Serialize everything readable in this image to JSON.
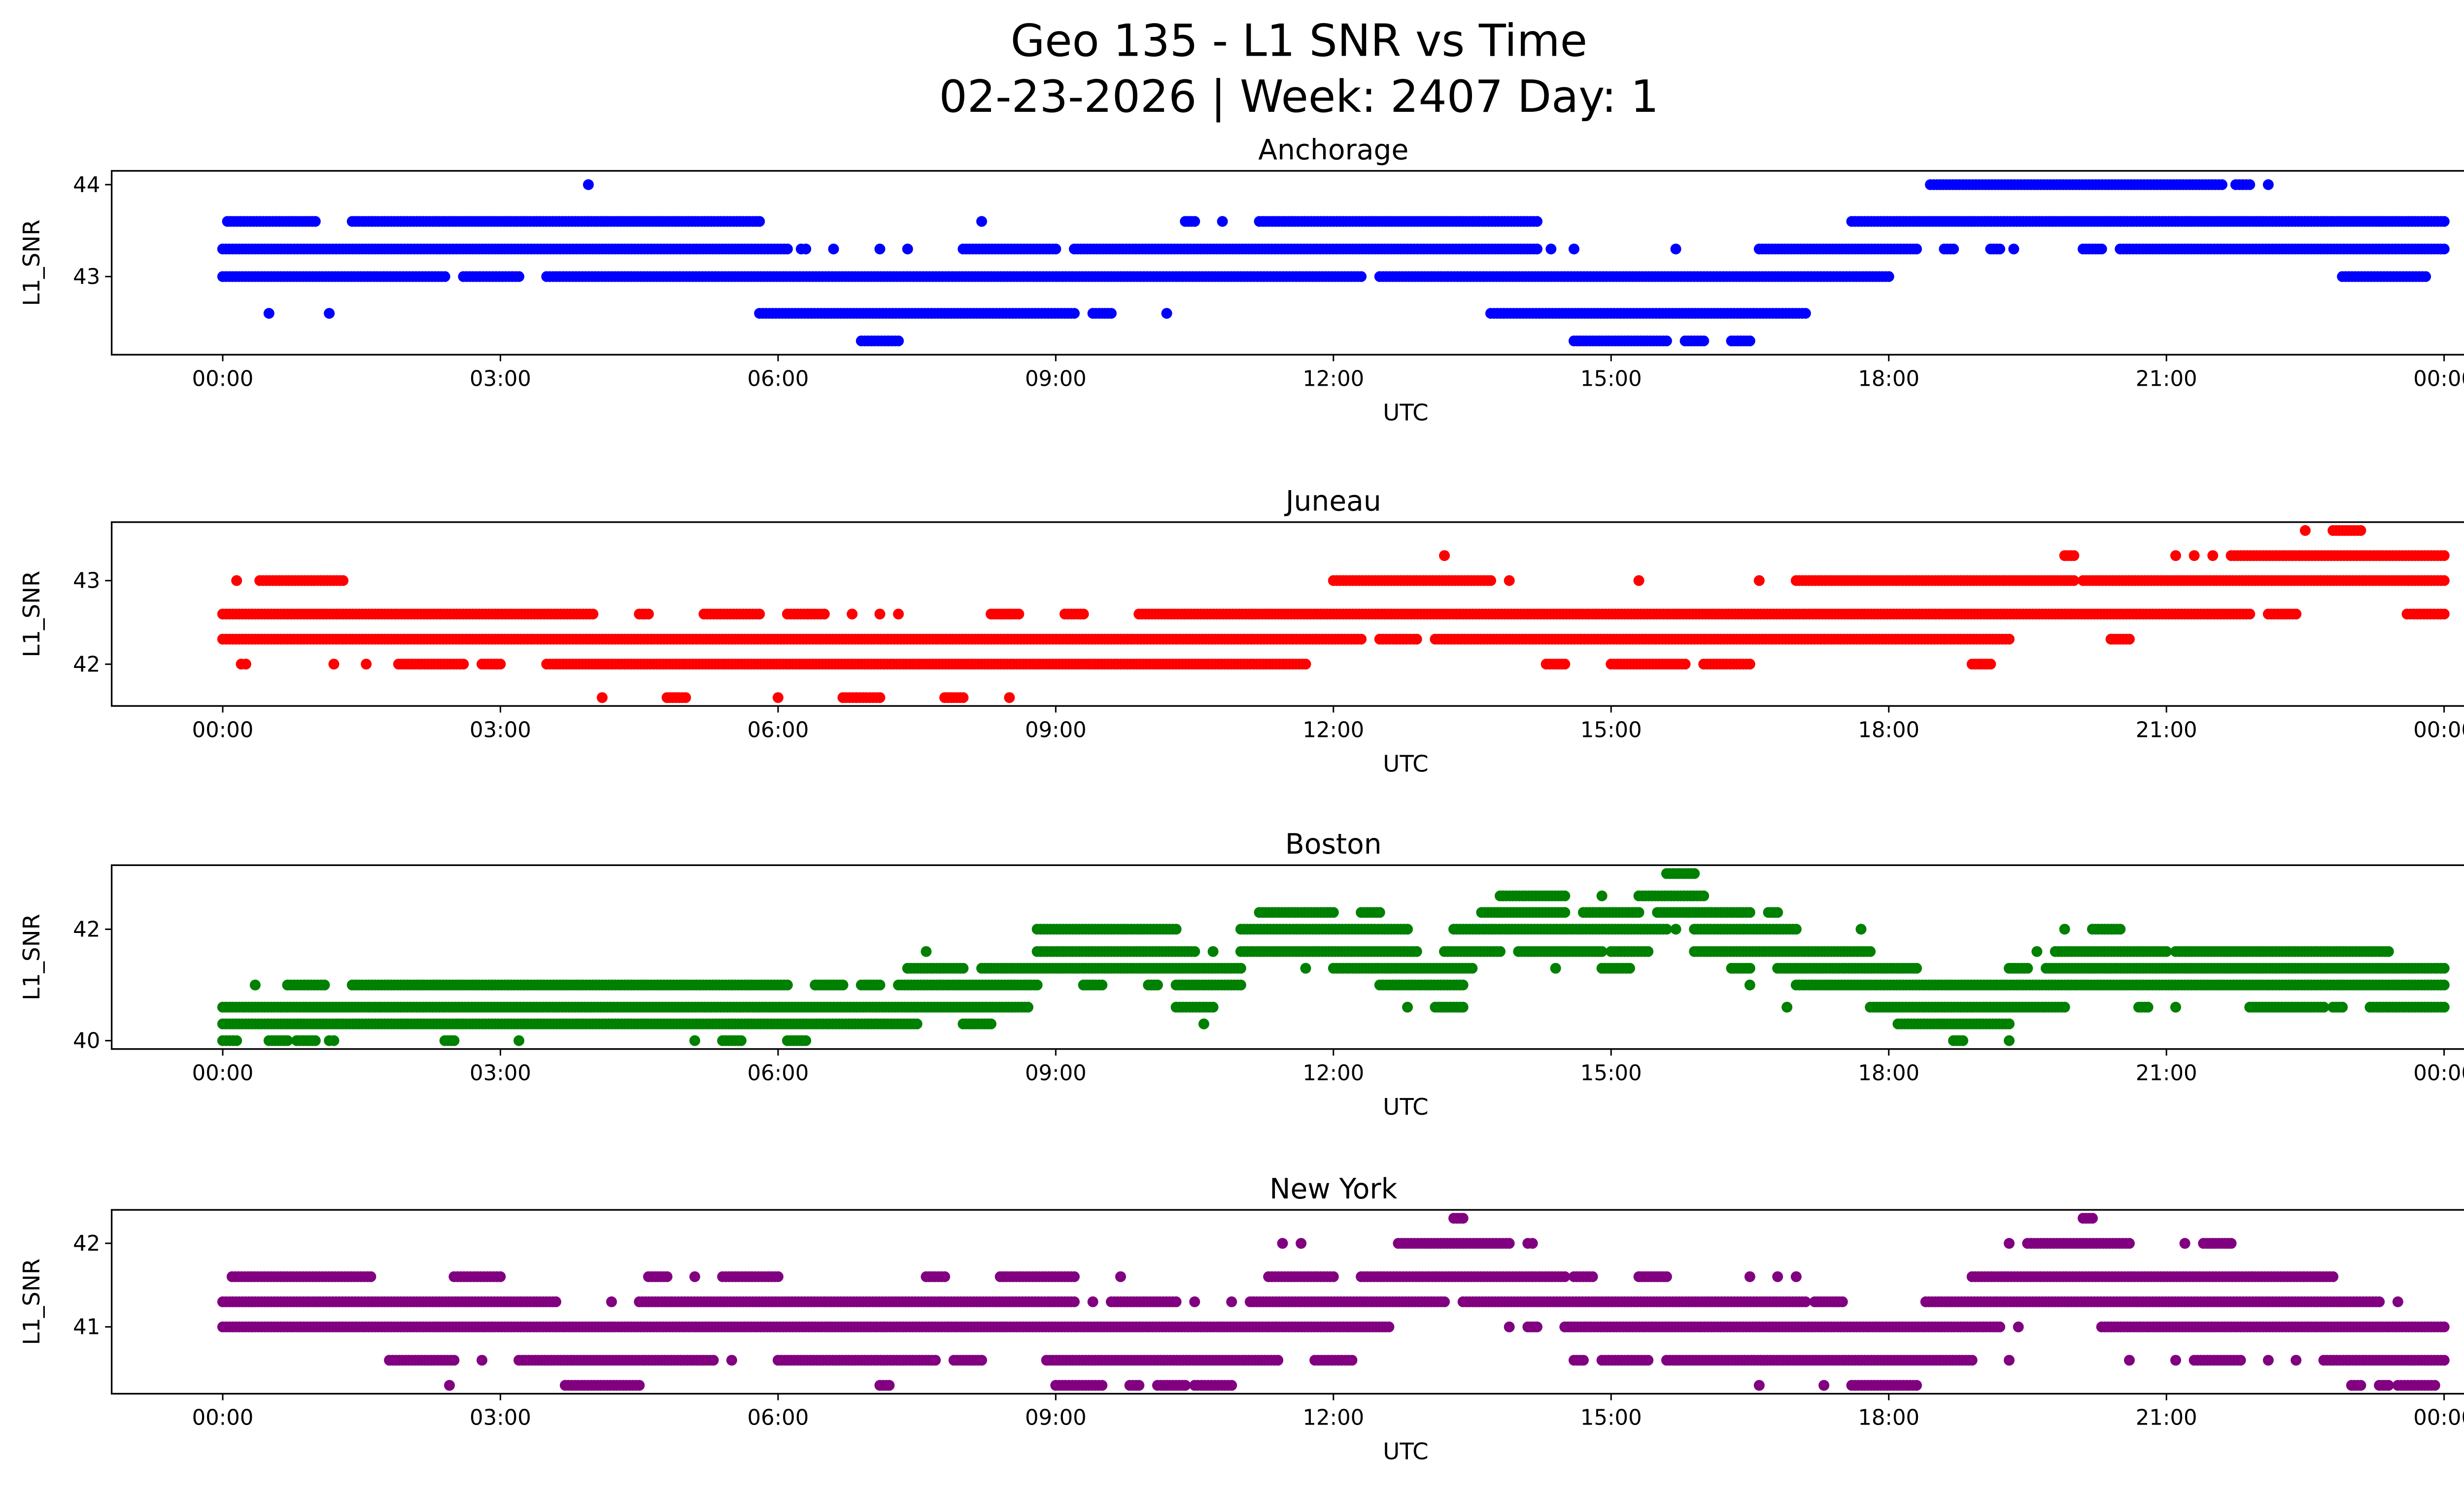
{
  "title_line1": "Geo 135 - L1 SNR vs Time",
  "title_line2": "02-23-2026 | Week: 2407 Day: 1",
  "chart_data": [
    {
      "type": "scatter",
      "title": "Anchorage",
      "xlabel": "UTC",
      "ylabel": "L1_SNR",
      "color": "#0000ff",
      "xlim_hours": [
        -1.2,
        25.2
      ],
      "xticks_hours": [
        0,
        3,
        6,
        9,
        12,
        15,
        18,
        21,
        24
      ],
      "xtick_labels": [
        "00:00",
        "03:00",
        "06:00",
        "09:00",
        "12:00",
        "15:00",
        "18:00",
        "21:00",
        "00:00"
      ],
      "ylim": [
        42.15,
        44.15
      ],
      "yticks": [
        43,
        44
      ],
      "ytick_labels": [
        "43",
        "44"
      ],
      "segments_hour_start_end_snr": [
        [
          3.95,
          3.95,
          44
        ],
        [
          18.45,
          21.6,
          44
        ],
        [
          21.75,
          21.9,
          44
        ],
        [
          22.1,
          22.1,
          44
        ],
        [
          0.05,
          1.0,
          43.6
        ],
        [
          1.4,
          5.8,
          43.6
        ],
        [
          8.2,
          8.2,
          43.6
        ],
        [
          10.4,
          10.5,
          43.6
        ],
        [
          10.8,
          10.8,
          43.6
        ],
        [
          11.2,
          14.2,
          43.6
        ],
        [
          17.6,
          24,
          43.6
        ],
        [
          0,
          6.1,
          43.3
        ],
        [
          6.25,
          6.3,
          43.3
        ],
        [
          6.6,
          6.6,
          43.3
        ],
        [
          7.1,
          7.1,
          43.3
        ],
        [
          7.4,
          7.4,
          43.3
        ],
        [
          8.0,
          9.0,
          43.3
        ],
        [
          9.2,
          14.2,
          43.3
        ],
        [
          14.35,
          14.35,
          43.3
        ],
        [
          14.6,
          14.6,
          43.3
        ],
        [
          15.7,
          15.7,
          43.3
        ],
        [
          16.6,
          18.3,
          43.3
        ],
        [
          18.6,
          18.7,
          43.3
        ],
        [
          19.1,
          19.2,
          43.3
        ],
        [
          19.35,
          19.35,
          43.3
        ],
        [
          20.1,
          20.3,
          43.3
        ],
        [
          20.5,
          24,
          43.3
        ],
        [
          0,
          2.4,
          43
        ],
        [
          2.6,
          3.2,
          43
        ],
        [
          3.5,
          12.3,
          43
        ],
        [
          12.5,
          18.0,
          43
        ],
        [
          22.9,
          23.8,
          43
        ],
        [
          0.5,
          0.5,
          42.6
        ],
        [
          1.15,
          1.15,
          42.6
        ],
        [
          5.8,
          9.2,
          42.6
        ],
        [
          9.4,
          9.6,
          42.6
        ],
        [
          10.2,
          10.2,
          42.6
        ],
        [
          13.7,
          17.1,
          42.6
        ],
        [
          6.9,
          7.3,
          42.3
        ],
        [
          14.6,
          15.6,
          42.3
        ],
        [
          15.8,
          16.0,
          42.3
        ],
        [
          16.3,
          16.5,
          42.3
        ]
      ]
    },
    {
      "type": "scatter",
      "title": "Juneau",
      "xlabel": "UTC",
      "ylabel": "L1_SNR",
      "color": "#ff0000",
      "xlim_hours": [
        -1.2,
        25.2
      ],
      "xticks_hours": [
        0,
        3,
        6,
        9,
        12,
        15,
        18,
        21,
        24
      ],
      "xtick_labels": [
        "00:00",
        "03:00",
        "06:00",
        "09:00",
        "12:00",
        "15:00",
        "18:00",
        "21:00",
        "00:00"
      ],
      "ylim": [
        41.5,
        43.7
      ],
      "yticks": [
        42,
        43
      ],
      "ytick_labels": [
        "42",
        "43"
      ],
      "segments_hour_start_end_snr": [
        [
          22.5,
          22.5,
          43.6
        ],
        [
          22.8,
          23.1,
          43.6
        ],
        [
          13.2,
          13.2,
          43.3
        ],
        [
          19.9,
          20.0,
          43.3
        ],
        [
          21.1,
          21.1,
          43.3
        ],
        [
          21.3,
          21.3,
          43.3
        ],
        [
          21.5,
          21.5,
          43.3
        ],
        [
          21.7,
          24,
          43.3
        ],
        [
          0.15,
          0.15,
          43
        ],
        [
          0.4,
          1.3,
          43
        ],
        [
          12.0,
          13.7,
          43
        ],
        [
          13.9,
          13.9,
          43
        ],
        [
          15.3,
          15.3,
          43
        ],
        [
          16.6,
          16.6,
          43
        ],
        [
          17.0,
          20.0,
          43
        ],
        [
          20.1,
          24,
          43
        ],
        [
          0,
          4.0,
          42.6
        ],
        [
          4.5,
          4.6,
          42.6
        ],
        [
          5.2,
          5.8,
          42.6
        ],
        [
          6.1,
          6.5,
          42.6
        ],
        [
          6.8,
          6.8,
          42.6
        ],
        [
          7.1,
          7.1,
          42.6
        ],
        [
          7.3,
          7.3,
          42.6
        ],
        [
          8.3,
          8.6,
          42.6
        ],
        [
          9.1,
          9.3,
          42.6
        ],
        [
          9.9,
          21.9,
          42.6
        ],
        [
          22.1,
          22.4,
          42.6
        ],
        [
          23.6,
          24,
          42.6
        ],
        [
          0,
          12.3,
          42.3
        ],
        [
          12.5,
          12.9,
          42.3
        ],
        [
          13.1,
          19.3,
          42.3
        ],
        [
          20.4,
          20.6,
          42.3
        ],
        [
          0.2,
          0.25,
          42
        ],
        [
          1.2,
          1.2,
          42
        ],
        [
          1.55,
          1.55,
          42
        ],
        [
          1.9,
          2.6,
          42
        ],
        [
          2.8,
          3.0,
          42
        ],
        [
          3.5,
          11.7,
          42
        ],
        [
          14.3,
          14.5,
          42
        ],
        [
          15.0,
          15.8,
          42
        ],
        [
          16.0,
          16.5,
          42
        ],
        [
          18.9,
          19.1,
          42
        ],
        [
          4.1,
          4.1,
          41.6
        ],
        [
          4.8,
          5.0,
          41.6
        ],
        [
          6.0,
          6.0,
          41.6
        ],
        [
          6.7,
          7.1,
          41.6
        ],
        [
          7.8,
          8.0,
          41.6
        ],
        [
          8.5,
          8.5,
          41.6
        ]
      ]
    },
    {
      "type": "scatter",
      "title": "Boston",
      "xlabel": "UTC",
      "ylabel": "L1_SNR",
      "color": "#008000",
      "xlim_hours": [
        -1.2,
        25.2
      ],
      "xticks_hours": [
        0,
        3,
        6,
        9,
        12,
        15,
        18,
        21,
        24
      ],
      "xtick_labels": [
        "00:00",
        "03:00",
        "06:00",
        "09:00",
        "12:00",
        "15:00",
        "18:00",
        "21:00",
        "00:00"
      ],
      "ylim": [
        39.85,
        43.15
      ],
      "yticks": [
        40,
        42
      ],
      "ytick_labels": [
        "40",
        "42"
      ],
      "segments_hour_start_end_snr": [
        [
          15.6,
          15.9,
          43
        ],
        [
          13.8,
          14.5,
          42.6
        ],
        [
          14.9,
          14.9,
          42.6
        ],
        [
          15.3,
          16.0,
          42.6
        ],
        [
          11.2,
          12.0,
          42.3
        ],
        [
          12.3,
          12.5,
          42.3
        ],
        [
          13.6,
          14.5,
          42.3
        ],
        [
          14.7,
          15.3,
          42.3
        ],
        [
          15.5,
          16.5,
          42.3
        ],
        [
          16.7,
          16.8,
          42.3
        ],
        [
          8.8,
          10.3,
          42
        ],
        [
          11.0,
          12.8,
          42
        ],
        [
          13.3,
          15.6,
          42
        ],
        [
          15.7,
          15.7,
          42
        ],
        [
          15.9,
          17.0,
          42
        ],
        [
          17.7,
          17.7,
          42
        ],
        [
          19.9,
          19.9,
          42
        ],
        [
          20.2,
          20.5,
          42
        ],
        [
          7.6,
          7.6,
          41.6
        ],
        [
          8.8,
          10.5,
          41.6
        ],
        [
          10.7,
          10.7,
          41.6
        ],
        [
          11.0,
          12.9,
          41.6
        ],
        [
          13.2,
          13.8,
          41.6
        ],
        [
          14.0,
          14.9,
          41.6
        ],
        [
          15.0,
          15.4,
          41.6
        ],
        [
          15.9,
          17.8,
          41.6
        ],
        [
          19.6,
          19.6,
          41.6
        ],
        [
          19.8,
          21.0,
          41.6
        ],
        [
          21.1,
          23.4,
          41.6
        ],
        [
          7.4,
          8.0,
          41.3
        ],
        [
          8.2,
          11.0,
          41.3
        ],
        [
          11.7,
          11.7,
          41.3
        ],
        [
          12.0,
          13.5,
          41.3
        ],
        [
          14.4,
          14.4,
          41.3
        ],
        [
          14.9,
          15.2,
          41.3
        ],
        [
          16.3,
          16.5,
          41.3
        ],
        [
          16.8,
          18.3,
          41.3
        ],
        [
          19.3,
          19.5,
          41.3
        ],
        [
          19.7,
          24,
          41.3
        ],
        [
          0.35,
          0.35,
          41
        ],
        [
          0.7,
          1.1,
          41
        ],
        [
          1.4,
          6.1,
          41
        ],
        [
          6.4,
          6.7,
          41
        ],
        [
          6.9,
          7.1,
          41
        ],
        [
          7.3,
          8.8,
          41
        ],
        [
          9.3,
          9.5,
          41
        ],
        [
          10.0,
          10.1,
          41
        ],
        [
          10.3,
          11.0,
          41
        ],
        [
          12.5,
          13.4,
          41
        ],
        [
          16.5,
          16.5,
          41
        ],
        [
          17.0,
          24,
          41
        ],
        [
          0,
          8.7,
          40.6
        ],
        [
          10.3,
          10.7,
          40.6
        ],
        [
          12.8,
          12.8,
          40.6
        ],
        [
          13.1,
          13.4,
          40.6
        ],
        [
          16.9,
          16.9,
          40.6
        ],
        [
          17.8,
          19.9,
          40.6
        ],
        [
          20.7,
          20.8,
          40.6
        ],
        [
          21.1,
          21.1,
          40.6
        ],
        [
          21.9,
          22.7,
          40.6
        ],
        [
          22.8,
          22.9,
          40.6
        ],
        [
          23.2,
          24,
          40.6
        ],
        [
          0,
          7.5,
          40.3
        ],
        [
          8.0,
          8.3,
          40.3
        ],
        [
          10.6,
          10.6,
          40.3
        ],
        [
          18.1,
          19.3,
          40.3
        ],
        [
          0,
          0.15,
          40
        ],
        [
          0.5,
          0.7,
          40
        ],
        [
          0.8,
          1.0,
          40
        ],
        [
          1.15,
          1.2,
          40
        ],
        [
          2.4,
          2.5,
          40
        ],
        [
          3.2,
          3.2,
          40
        ],
        [
          5.1,
          5.1,
          40
        ],
        [
          5.4,
          5.6,
          40
        ],
        [
          6.1,
          6.3,
          40
        ],
        [
          18.7,
          18.8,
          40
        ],
        [
          19.3,
          19.3,
          40
        ]
      ]
    },
    {
      "type": "scatter",
      "title": "New York",
      "xlabel": "UTC",
      "ylabel": "L1_SNR",
      "color": "#800080",
      "xlim_hours": [
        -1.2,
        25.2
      ],
      "xticks_hours": [
        0,
        3,
        6,
        9,
        12,
        15,
        18,
        21,
        24
      ],
      "xtick_labels": [
        "00:00",
        "03:00",
        "06:00",
        "09:00",
        "12:00",
        "15:00",
        "18:00",
        "21:00",
        "00:00"
      ],
      "ylim": [
        40.2,
        42.4
      ],
      "yticks": [
        41,
        42
      ],
      "ytick_labels": [
        "41",
        "42"
      ],
      "segments_hour_start_end_snr": [
        [
          13.3,
          13.4,
          42.3
        ],
        [
          20.1,
          20.2,
          42.3
        ],
        [
          11.45,
          11.45,
          42
        ],
        [
          11.65,
          11.65,
          42
        ],
        [
          12.7,
          13.9,
          42
        ],
        [
          14.1,
          14.15,
          42
        ],
        [
          19.3,
          19.3,
          42
        ],
        [
          19.5,
          20.6,
          42
        ],
        [
          21.2,
          21.2,
          42
        ],
        [
          21.4,
          21.7,
          42
        ],
        [
          0.1,
          1.6,
          41.6
        ],
        [
          2.5,
          3.0,
          41.6
        ],
        [
          4.6,
          4.8,
          41.6
        ],
        [
          5.1,
          5.1,
          41.6
        ],
        [
          5.4,
          6.0,
          41.6
        ],
        [
          7.6,
          7.8,
          41.6
        ],
        [
          8.4,
          9.2,
          41.6
        ],
        [
          9.7,
          9.7,
          41.6
        ],
        [
          11.3,
          12.0,
          41.6
        ],
        [
          12.3,
          14.5,
          41.6
        ],
        [
          14.6,
          14.8,
          41.6
        ],
        [
          15.3,
          15.6,
          41.6
        ],
        [
          16.5,
          16.5,
          41.6
        ],
        [
          16.8,
          16.8,
          41.6
        ],
        [
          17.0,
          17.0,
          41.6
        ],
        [
          18.9,
          22.8,
          41.6
        ],
        [
          0,
          3.6,
          41.3
        ],
        [
          4.2,
          4.2,
          41.3
        ],
        [
          4.5,
          9.2,
          41.3
        ],
        [
          9.4,
          9.4,
          41.3
        ],
        [
          9.6,
          10.3,
          41.3
        ],
        [
          10.5,
          10.5,
          41.3
        ],
        [
          10.9,
          10.9,
          41.3
        ],
        [
          11.1,
          13.2,
          41.3
        ],
        [
          13.4,
          17.1,
          41.3
        ],
        [
          17.2,
          17.5,
          41.3
        ],
        [
          18.4,
          23.3,
          41.3
        ],
        [
          23.5,
          23.5,
          41.3
        ],
        [
          0,
          12.6,
          41
        ],
        [
          13.9,
          13.9,
          41
        ],
        [
          14.1,
          14.2,
          41
        ],
        [
          14.5,
          19.2,
          41
        ],
        [
          19.4,
          19.4,
          41
        ],
        [
          20.3,
          24,
          41
        ],
        [
          1.8,
          2.5,
          40.6
        ],
        [
          2.8,
          2.8,
          40.6
        ],
        [
          3.2,
          5.3,
          40.6
        ],
        [
          5.5,
          5.5,
          40.6
        ],
        [
          6.0,
          7.7,
          40.6
        ],
        [
          7.9,
          8.2,
          40.6
        ],
        [
          8.9,
          11.4,
          40.6
        ],
        [
          11.8,
          12.2,
          40.6
        ],
        [
          14.6,
          14.7,
          40.6
        ],
        [
          14.9,
          15.4,
          40.6
        ],
        [
          15.6,
          18.9,
          40.6
        ],
        [
          19.3,
          19.3,
          40.6
        ],
        [
          20.6,
          20.6,
          40.6
        ],
        [
          21.1,
          21.1,
          40.6
        ],
        [
          21.3,
          21.8,
          40.6
        ],
        [
          22.1,
          22.1,
          40.6
        ],
        [
          22.4,
          22.4,
          40.6
        ],
        [
          22.7,
          24,
          40.6
        ],
        [
          2.45,
          2.45,
          40.3
        ],
        [
          3.7,
          4.5,
          40.3
        ],
        [
          7.1,
          7.2,
          40.3
        ],
        [
          9.0,
          9.5,
          40.3
        ],
        [
          9.8,
          9.9,
          40.3
        ],
        [
          10.1,
          10.4,
          40.3
        ],
        [
          10.5,
          10.9,
          40.3
        ],
        [
          16.6,
          16.6,
          40.3
        ],
        [
          17.3,
          17.3,
          40.3
        ],
        [
          17.6,
          18.3,
          40.3
        ],
        [
          23.0,
          23.1,
          40.3
        ],
        [
          23.3,
          23.4,
          40.3
        ],
        [
          23.5,
          23.9,
          40.3
        ]
      ]
    }
  ]
}
